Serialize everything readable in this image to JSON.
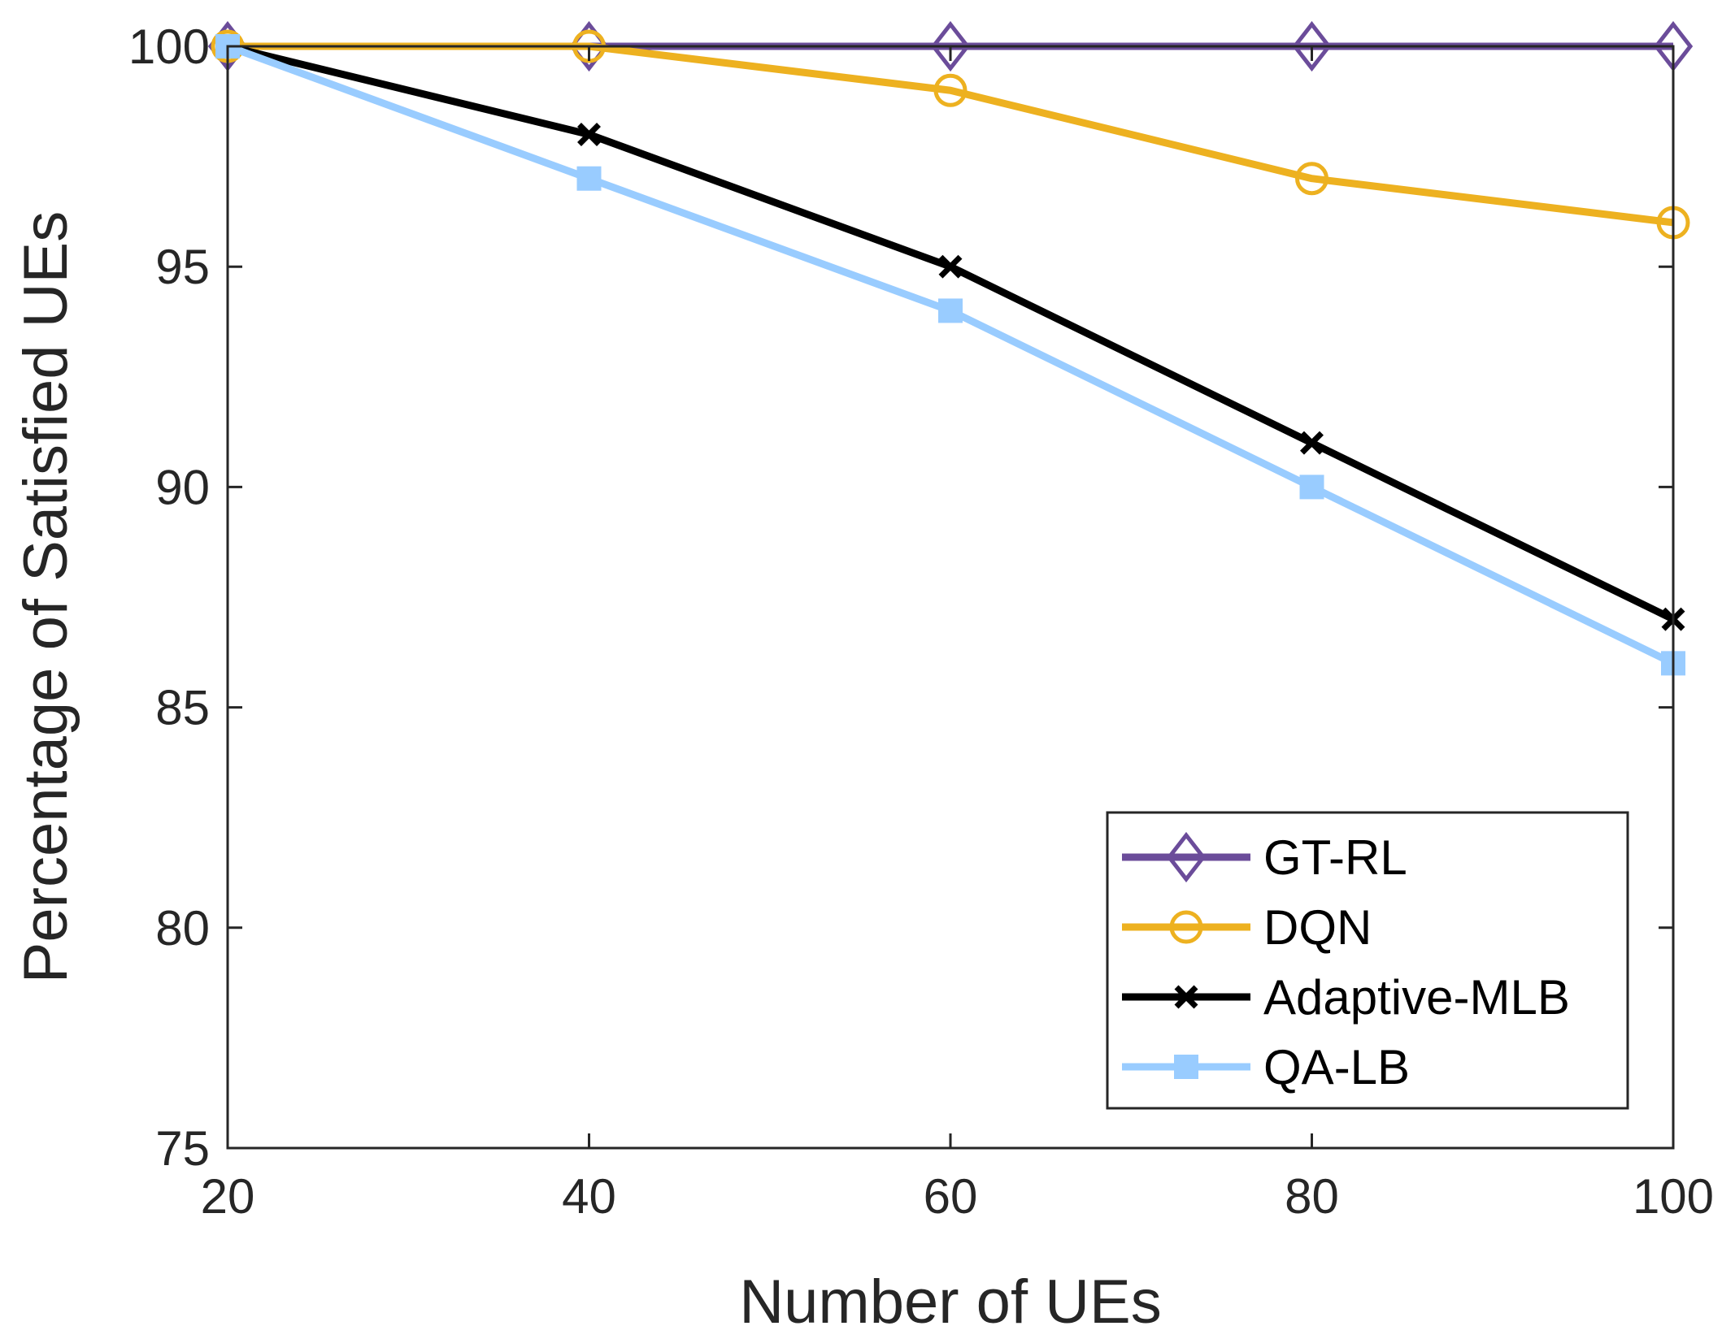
{
  "chart_data": {
    "type": "line",
    "title": "",
    "xlabel": "Number of  UEs",
    "ylabel": "Percentage of Satisfied UEs",
    "x": [
      20,
      40,
      60,
      80,
      100
    ],
    "xlim": [
      20,
      100
    ],
    "ylim": [
      75,
      100
    ],
    "xticks": [
      "20",
      "40",
      "60",
      "80",
      "100"
    ],
    "yticks": [
      "75",
      "80",
      "85",
      "90",
      "95",
      "100"
    ],
    "grid": false,
    "legend_position": "bottom-right",
    "series": [
      {
        "name": "GT-RL",
        "values": [
          100,
          100,
          100,
          100,
          100
        ],
        "color": "#6B4C9A",
        "marker": "diamond"
      },
      {
        "name": "DQN",
        "values": [
          100,
          100,
          99,
          97,
          96
        ],
        "color": "#EDB120",
        "marker": "circle"
      },
      {
        "name": "Adaptive-MLB",
        "values": [
          100,
          98,
          95,
          91,
          87
        ],
        "color": "#000000",
        "marker": "x"
      },
      {
        "name": "QA-LB",
        "values": [
          100,
          97,
          94,
          90,
          86
        ],
        "color": "#99CCFF",
        "marker": "square"
      }
    ]
  }
}
